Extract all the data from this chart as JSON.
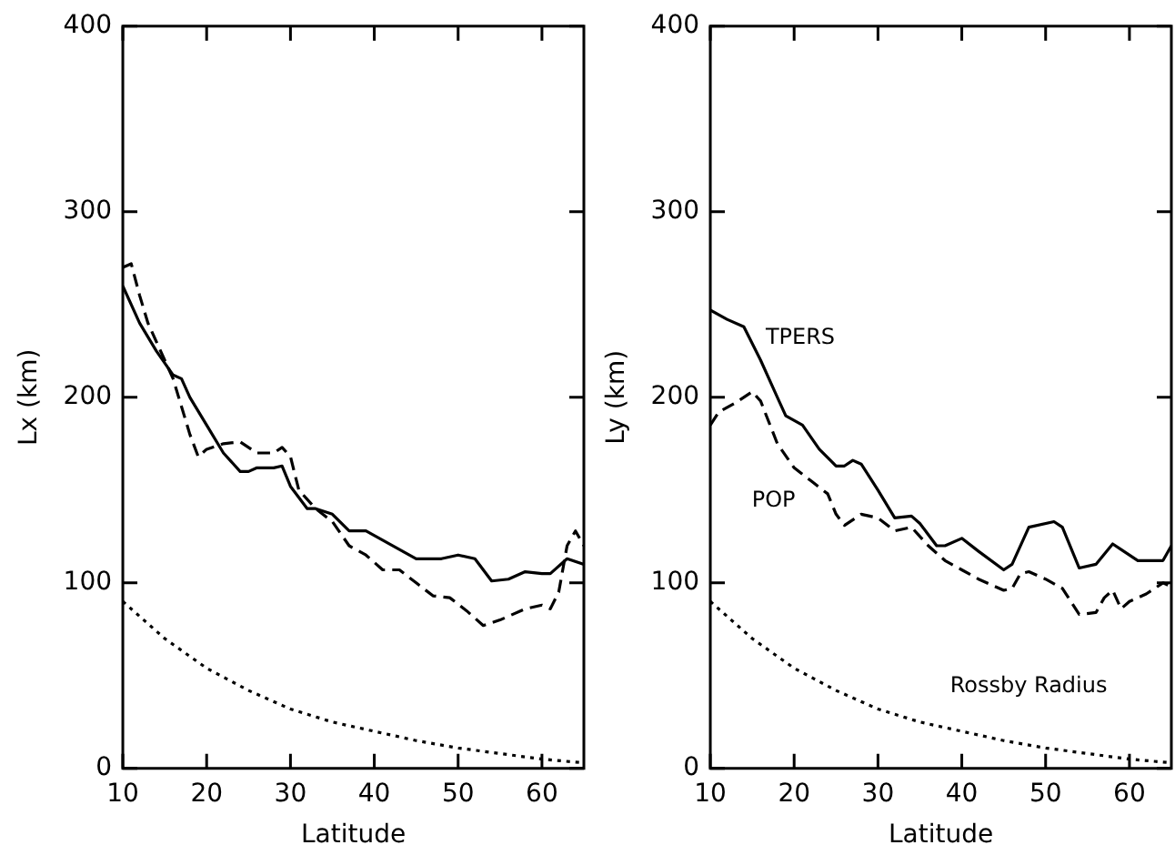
{
  "chart_data": [
    {
      "type": "line",
      "xlabel": "Latitude",
      "ylabel": "Lx (km)",
      "xlim": [
        10,
        65
      ],
      "ylim": [
        0,
        400
      ],
      "xticks": [
        10,
        20,
        30,
        40,
        50,
        60
      ],
      "yticks": [
        0,
        100,
        200,
        300,
        400
      ],
      "grid": false,
      "legend": false,
      "marker": "none",
      "series": [
        {
          "color": "#000000",
          "line_style": "solid",
          "x": [
            10,
            12,
            14,
            16,
            17,
            18,
            20,
            22,
            24,
            25,
            26,
            28,
            29,
            30,
            32,
            33,
            35,
            37,
            39,
            41,
            43,
            45,
            48,
            50,
            52,
            54,
            56,
            58,
            60,
            61,
            63,
            65
          ],
          "values": [
            260,
            240,
            225,
            212,
            210,
            200,
            185,
            170,
            160,
            160,
            162,
            162,
            163,
            152,
            140,
            140,
            137,
            128,
            128,
            123,
            118,
            113,
            113,
            115,
            113,
            101,
            102,
            106,
            105,
            105,
            113,
            110
          ]
        },
        {
          "color": "#000000",
          "line_style": "dashed",
          "x": [
            10,
            11,
            12,
            13,
            15,
            16,
            18,
            19,
            20,
            22,
            24,
            26,
            28,
            29,
            30,
            31,
            33,
            35,
            37,
            39,
            41,
            43,
            45,
            47,
            49,
            51,
            53,
            55,
            58,
            60,
            61,
            62,
            63,
            64,
            65
          ],
          "values": [
            270,
            272,
            255,
            240,
            220,
            210,
            180,
            168,
            172,
            175,
            176,
            170,
            170,
            173,
            168,
            150,
            140,
            133,
            120,
            115,
            107,
            107,
            100,
            93,
            92,
            85,
            77,
            80,
            86,
            88,
            86,
            95,
            120,
            128,
            120
          ]
        },
        {
          "color": "#000000",
          "line_style": "dotted",
          "x": [
            10,
            15,
            20,
            25,
            30,
            35,
            40,
            45,
            50,
            55,
            60,
            65
          ],
          "values": [
            90,
            70,
            54,
            42,
            32,
            25,
            20,
            15,
            11,
            8,
            5,
            3
          ]
        }
      ]
    },
    {
      "type": "line",
      "xlabel": "Latitude",
      "ylabel": "Ly (km)",
      "xlim": [
        10,
        65
      ],
      "ylim": [
        0,
        400
      ],
      "xticks": [
        10,
        20,
        30,
        40,
        50,
        60
      ],
      "yticks": [
        0,
        100,
        200,
        300,
        400
      ],
      "grid": false,
      "legend": false,
      "marker": "none",
      "annotations": [
        "TPERS",
        "POP",
        "Rossby Radius"
      ],
      "series": [
        {
          "color": "#000000",
          "line_style": "solid",
          "x": [
            10,
            12,
            14,
            16,
            18,
            19,
            21,
            23,
            25,
            26,
            27,
            28,
            30,
            32,
            34,
            35,
            37,
            38,
            40,
            42,
            45,
            46,
            48,
            51,
            52,
            54,
            56,
            58,
            59,
            61,
            64,
            65
          ],
          "values": [
            247,
            242,
            238,
            220,
            200,
            190,
            185,
            172,
            163,
            163,
            166,
            164,
            150,
            135,
            136,
            132,
            120,
            120,
            124,
            117,
            107,
            110,
            130,
            133,
            130,
            108,
            110,
            121,
            118,
            112,
            112,
            120
          ]
        },
        {
          "color": "#000000",
          "line_style": "dashed",
          "x": [
            10,
            11,
            13,
            15,
            16,
            18,
            20,
            22,
            24,
            25,
            26,
            28,
            30,
            32,
            34,
            36,
            38,
            40,
            42,
            45,
            46,
            47,
            48,
            50,
            52,
            54,
            56,
            57,
            58,
            59,
            60,
            62,
            64,
            65
          ],
          "values": [
            185,
            192,
            197,
            203,
            198,
            175,
            162,
            155,
            148,
            137,
            131,
            137,
            135,
            128,
            130,
            120,
            112,
            107,
            102,
            96,
            97,
            105,
            106,
            102,
            97,
            83,
            84,
            92,
            96,
            86,
            90,
            94,
            100,
            98
          ]
        },
        {
          "color": "#000000",
          "line_style": "dotted",
          "x": [
            10,
            15,
            20,
            25,
            30,
            35,
            40,
            45,
            50,
            55,
            60,
            65
          ],
          "values": [
            90,
            70,
            54,
            42,
            32,
            25,
            20,
            15,
            11,
            8,
            5,
            3
          ]
        }
      ]
    }
  ]
}
